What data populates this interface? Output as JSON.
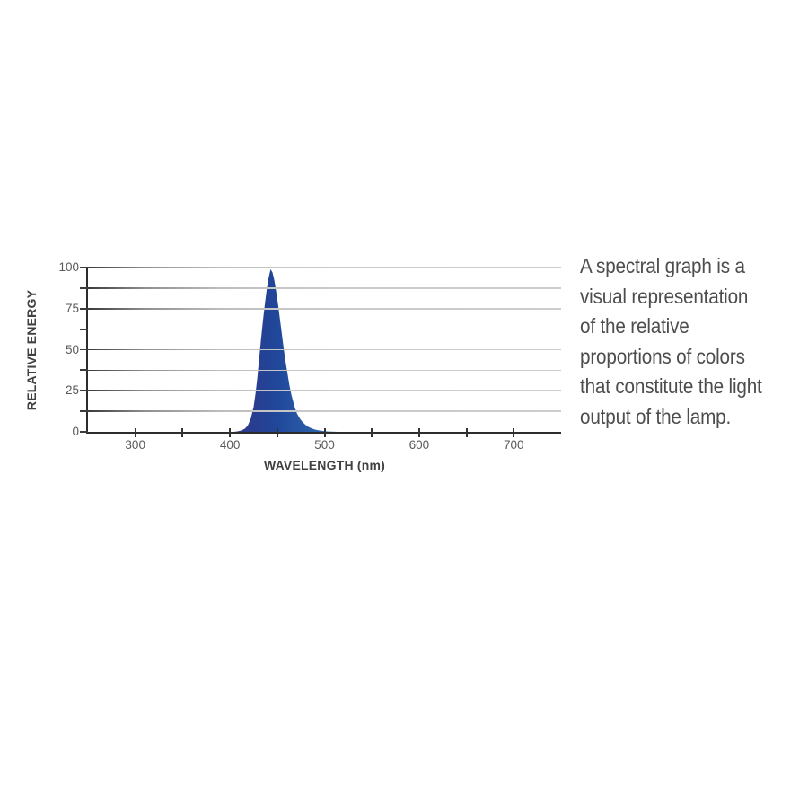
{
  "description": {
    "lines": [
      "A spectral graph is a",
      "visual representation",
      "of the relative",
      "proportions of colors",
      "that constitute the light",
      "output of the lamp."
    ]
  },
  "chart_data": {
    "type": "area",
    "title": "",
    "xlabel": "WAVELENGTH (nm)",
    "ylabel": "RELATIVE ENERGY",
    "xlim": [
      250,
      750
    ],
    "ylim": [
      0,
      100
    ],
    "legend": "none",
    "grid": "horizontal lines every 12.5 units, fading dark to light gray left to right",
    "x_tick_labels": [
      "300",
      "400",
      "500",
      "600",
      "700"
    ],
    "x_tick_label_values": [
      300,
      400,
      500,
      600,
      700
    ],
    "x_ticks": [
      300,
      350,
      400,
      450,
      500,
      550,
      600,
      650,
      700
    ],
    "y_tick_labels": [
      "0",
      "25",
      "50",
      "75",
      "100"
    ],
    "y_tick_label_values": [
      0,
      25,
      50,
      75,
      100
    ],
    "y_ticks": [
      0,
      12.5,
      25,
      37.5,
      50,
      62.5,
      75,
      87.5,
      100
    ],
    "y_gridlines": [
      12.5,
      25,
      37.5,
      50,
      62.5,
      75,
      87.5,
      100
    ],
    "axis_color": "#2e2d2d",
    "tick_label_color": "#58595b",
    "axis_title_color": "#414042",
    "series": [
      {
        "name": "lamp-spectral-output",
        "peak_wavelength_nm": 443,
        "peak_value": 99,
        "fill_gradient": [
          "#2c3a8c",
          "#20479a",
          "#3066ae"
        ],
        "gradient_span_nm": [
          415,
          500
        ],
        "points": [
          [
            404,
            0
          ],
          [
            408,
            0.3
          ],
          [
            412,
            0.8
          ],
          [
            416,
            2
          ],
          [
            419,
            4
          ],
          [
            422,
            8
          ],
          [
            425,
            15
          ],
          [
            427,
            23
          ],
          [
            429,
            33
          ],
          [
            431,
            45
          ],
          [
            433,
            57
          ],
          [
            435,
            68
          ],
          [
            437,
            78
          ],
          [
            439,
            87
          ],
          [
            441,
            94
          ],
          [
            443,
            99
          ],
          [
            445,
            97
          ],
          [
            447,
            92
          ],
          [
            449,
            85
          ],
          [
            451,
            77
          ],
          [
            453,
            68
          ],
          [
            455,
            59
          ],
          [
            457,
            50
          ],
          [
            459,
            42
          ],
          [
            461,
            35
          ],
          [
            463,
            28
          ],
          [
            465,
            22.5
          ],
          [
            467,
            18
          ],
          [
            469,
            14
          ],
          [
            471,
            11
          ],
          [
            474,
            8
          ],
          [
            477,
            5.8
          ],
          [
            480,
            4.2
          ],
          [
            483,
            3
          ],
          [
            486,
            2.2
          ],
          [
            490,
            1.4
          ],
          [
            494,
            0.9
          ],
          [
            498,
            0.55
          ],
          [
            502,
            0.3
          ],
          [
            507,
            0.15
          ],
          [
            514,
            0
          ]
        ]
      }
    ]
  }
}
